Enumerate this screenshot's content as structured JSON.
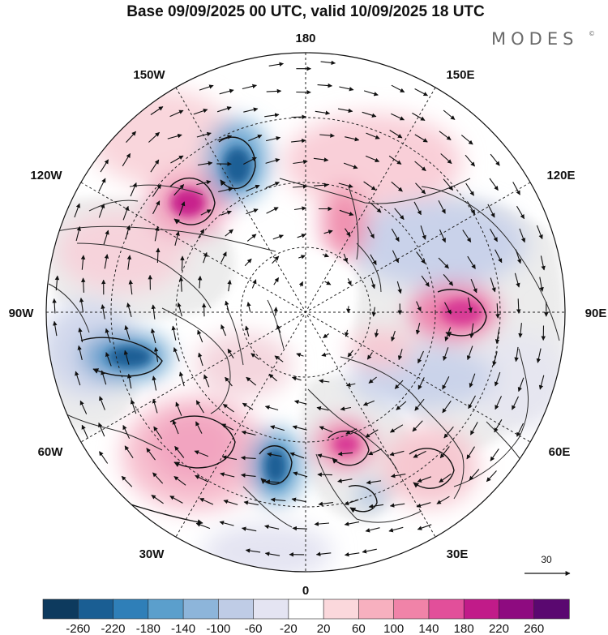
{
  "title": "Base 09/09/2025 00 UTC, valid 10/09/2025 18 UTC",
  "brand": {
    "name": "MODES",
    "mark": "©"
  },
  "map": {
    "projection": "north-polar-stereographic",
    "longitude_labels": {
      "top": "180",
      "bottom": "0",
      "left": "90W",
      "right": "90E",
      "upper_left_1": "150W",
      "upper_left_2": "120W",
      "upper_right_1": "150E",
      "upper_right_2": "120E",
      "lower_left_1": "60W",
      "lower_left_2": "30W",
      "lower_right_1": "60E",
      "lower_right_2": "30E"
    },
    "reference_vector": {
      "label": "30"
    },
    "colors": {
      "coastline": "#2a2a2a",
      "graticule": "#222222",
      "land_gray": "#e9e9e9",
      "wind_arrow": "#111111"
    }
  },
  "colorbar": {
    "labels": [
      "-260",
      "-220",
      "-180",
      "-140",
      "-100",
      "-60",
      "-20",
      "20",
      "60",
      "100",
      "140",
      "180",
      "220",
      "260"
    ],
    "colors": [
      "#0d3a5e",
      "#1a5e93",
      "#2f7fb8",
      "#5b9fcc",
      "#8db5da",
      "#bfcce6",
      "#e4e4f2",
      "#ffffff",
      "#fbd8dc",
      "#f7b0bf",
      "#f083a8",
      "#e24f9a",
      "#c11b89",
      "#8e0b80",
      "#5a0870"
    ]
  }
}
